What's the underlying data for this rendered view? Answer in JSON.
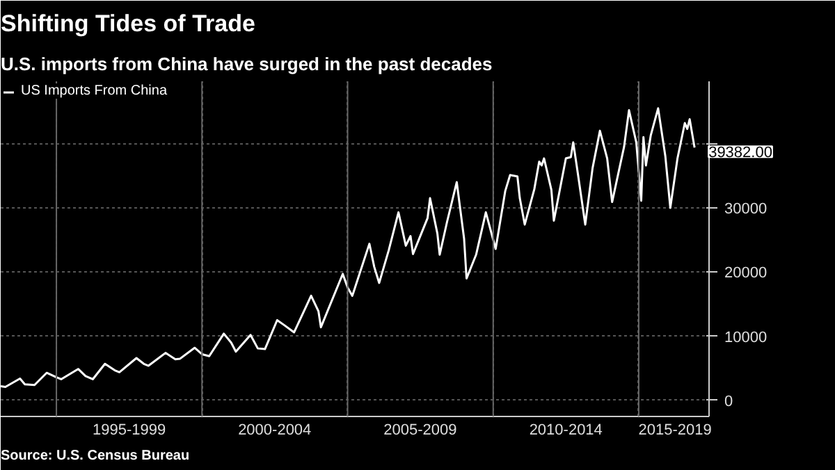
{
  "chart_data": {
    "type": "line",
    "title": "Shifting Tides of Trade",
    "subtitle": "U.S. imports from China have surged in the past decades",
    "annotations": [
      {
        "text": "39382.00",
        "x": "2016-12",
        "y": 39382
      },
      "Source: U.S. Census Bureau"
    ],
    "x": [
      "1993-02",
      "1993-04",
      "1993-10",
      "1993-12",
      "1994-04",
      "1994-09",
      "1995-01",
      "1995-03",
      "1995-10",
      "1996-01",
      "1996-04",
      "1996-09",
      "1997-01",
      "1997-03",
      "1997-10",
      "1998-01",
      "1998-03",
      "1998-10",
      "1999-02",
      "1999-04",
      "1999-10",
      "2000-01",
      "2000-04",
      "2000-10",
      "2001-01",
      "2001-03",
      "2001-09",
      "2001-12",
      "2002-03",
      "2002-08",
      "2002-11",
      "2003-03",
      "2003-10",
      "2004-01",
      "2004-02",
      "2004-11",
      "2005-01",
      "2005-03",
      "2005-10",
      "2005-12",
      "2006-02",
      "2006-06",
      "2006-10",
      "2007-01",
      "2007-03",
      "2007-04",
      "2007-10",
      "2007-11",
      "2008-02",
      "2008-03",
      "2008-06",
      "2008-10",
      "2009-01",
      "2009-02",
      "2009-06",
      "2009-10",
      "2010-02",
      "2010-06",
      "2010-08",
      "2010-11",
      "2010-12",
      "2011-02",
      "2011-06",
      "2011-08",
      "2011-09",
      "2011-10",
      "2012-01",
      "2012-02",
      "2012-07",
      "2012-09",
      "2012-10",
      "2012-12",
      "2013-03",
      "2013-06",
      "2013-09",
      "2013-12",
      "2014-02",
      "2014-07",
      "2014-09",
      "2014-12",
      "2015-02",
      "2015-03",
      "2015-04",
      "2015-06",
      "2015-09",
      "2015-12",
      "2016-02",
      "2016-05",
      "2016-08",
      "2016-09",
      "2016-10",
      "2016-12"
    ],
    "series": [
      {
        "name": "US Imports From China",
        "color": "#ffffff",
        "values": [
          2200,
          2100,
          3400,
          2500,
          2400,
          4300,
          3600,
          3300,
          4900,
          3800,
          3300,
          5700,
          4700,
          4400,
          6600,
          5700,
          5400,
          7400,
          6400,
          6500,
          8200,
          7200,
          6900,
          10400,
          9000,
          7600,
          10200,
          8100,
          8000,
          12500,
          11700,
          10600,
          16300,
          13900,
          11400,
          19700,
          17600,
          16300,
          24400,
          20800,
          18300,
          23400,
          29300,
          24100,
          25600,
          22800,
          28400,
          31500,
          26000,
          22700,
          27800,
          34000,
          25200,
          19000,
          22700,
          29300,
          23600,
          32600,
          35100,
          34900,
          31500,
          27400,
          32900,
          37200,
          36600,
          37700,
          32800,
          28000,
          37700,
          37900,
          40200,
          35100,
          27400,
          36200,
          42000,
          37700,
          30900,
          39500,
          45200,
          40200,
          31100,
          41000,
          36600,
          41300,
          45500,
          38000,
          30000,
          37700,
          43200,
          42300,
          43800,
          39382
        ]
      }
    ],
    "xlim": [
      "1993-02",
      "2017-06"
    ],
    "xticks": [
      {
        "value": "1995-01",
        "label": null
      },
      {
        "value": "2000-01",
        "label": null
      },
      {
        "value": "2005-01",
        "label": null
      },
      {
        "value": "2010-01",
        "label": null
      },
      {
        "value": "2015-01",
        "label": null
      },
      {
        "value": "1997-07",
        "label": "1995-1999"
      },
      {
        "value": "2002-07",
        "label": "2000-2004"
      },
      {
        "value": "2007-07",
        "label": "2005-2009"
      },
      {
        "value": "2012-07",
        "label": "2010-2014"
      },
      {
        "value": "2016-04",
        "label": "2015-2019"
      }
    ],
    "ylim": [
      -2500,
      49700
    ],
    "yticks": [
      0,
      10000,
      20000,
      30000,
      {
        "value": 40000,
        "label": null
      }
    ],
    "grid": true,
    "legend": "top left",
    "line_style": "solid",
    "marker": "none"
  }
}
